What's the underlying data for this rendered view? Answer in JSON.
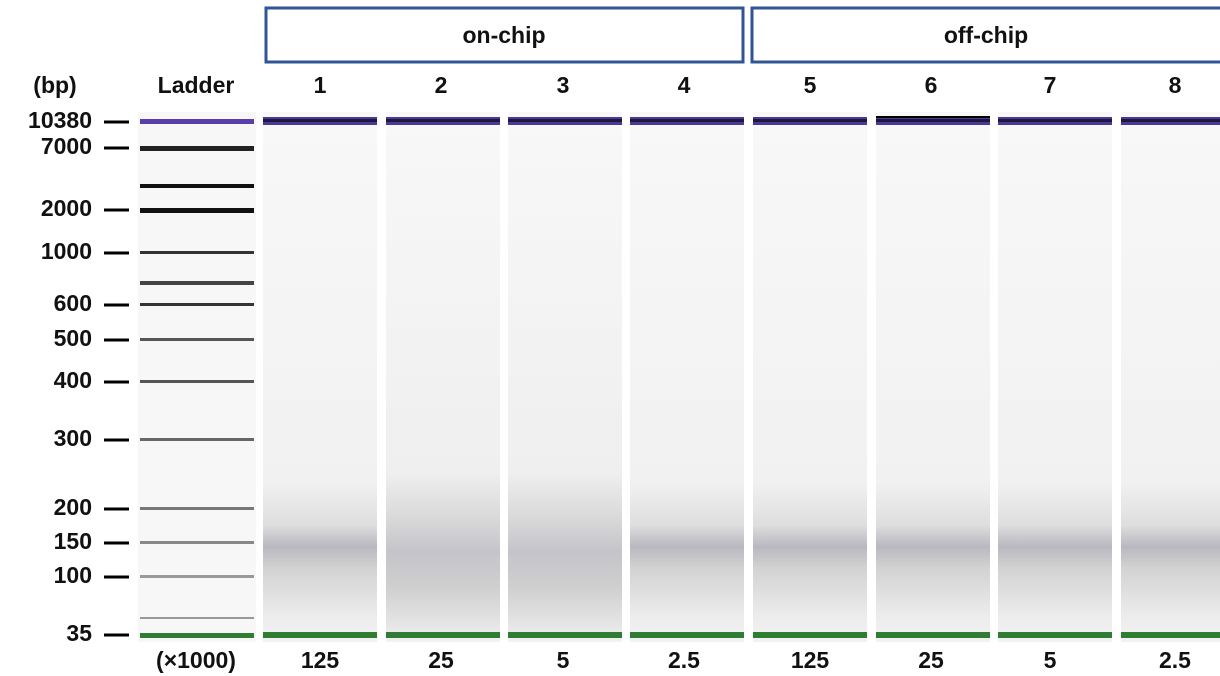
{
  "unit_label": "(bp)",
  "ladder_label": "Ladder",
  "amount_unit": "(×1000)",
  "size_markers": [
    10380,
    7000,
    2000,
    1000,
    600,
    500,
    400,
    300,
    200,
    150,
    100,
    35
  ],
  "groups": [
    {
      "label": "on-chip"
    },
    {
      "label": "off-chip"
    }
  ],
  "lanes": [
    {
      "label": 1,
      "amount": 125
    },
    {
      "label": 2,
      "amount": 25
    },
    {
      "label": 3,
      "amount": 5
    },
    {
      "label": 4,
      "amount": 2.5
    },
    {
      "label": 5,
      "amount": 125
    },
    {
      "label": 6,
      "amount": 25
    },
    {
      "label": 7,
      "amount": 5
    },
    {
      "label": 8,
      "amount": 2.5
    }
  ]
}
